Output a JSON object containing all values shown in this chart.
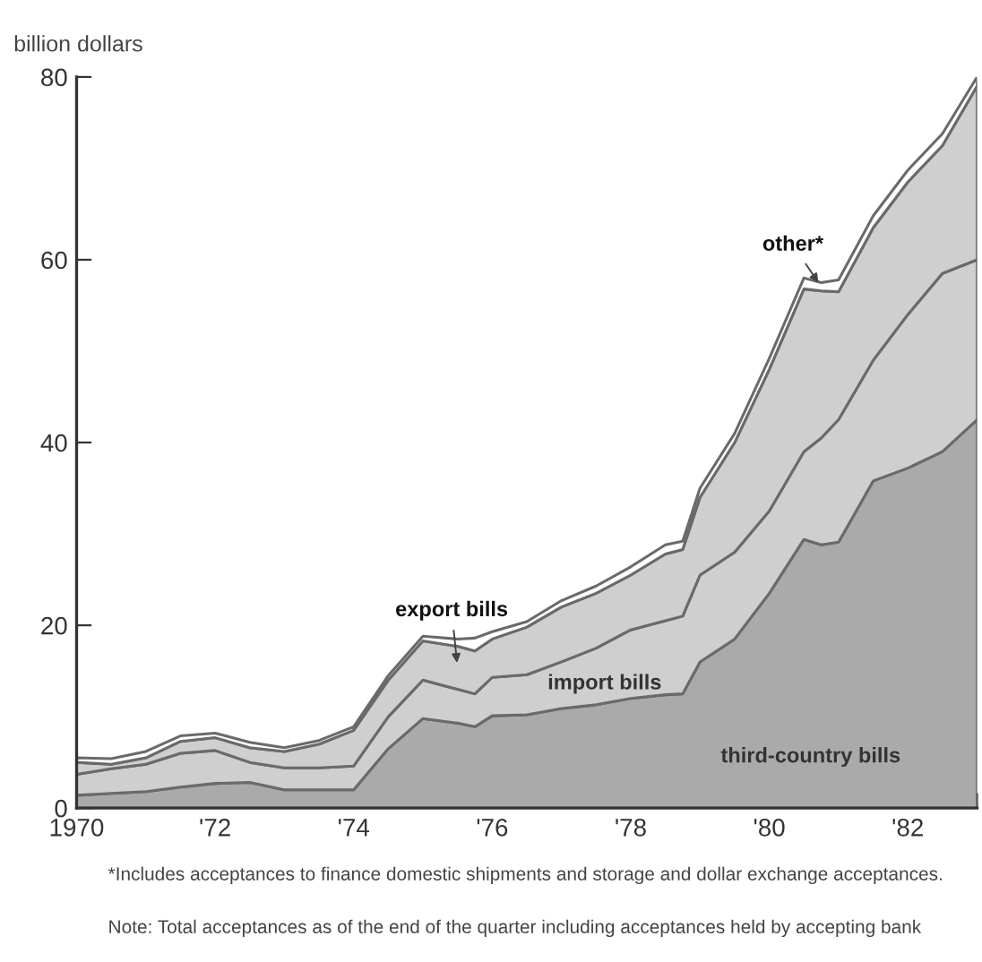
{
  "chart_data": {
    "type": "area",
    "stacked": true,
    "ylabel": "billion dollars",
    "x": [
      1970.0,
      1970.5,
      1971.0,
      1971.5,
      1972.0,
      1972.5,
      1973.0,
      1973.5,
      1974.0,
      1974.5,
      1975.0,
      1975.5,
      1975.75,
      1976.0,
      1976.5,
      1977.0,
      1977.5,
      1978.0,
      1978.5,
      1978.75,
      1979.0,
      1979.5,
      1980.0,
      1980.5,
      1980.75,
      1981.0,
      1981.5,
      1982.0,
      1982.5,
      1983.0
    ],
    "series": [
      {
        "name": "third-country bills",
        "color": "#aaaaaa",
        "values": [
          1.4,
          1.6,
          1.8,
          2.3,
          2.7,
          2.8,
          2.0,
          2.0,
          2.0,
          6.5,
          9.8,
          9.3,
          8.9,
          10.1,
          10.2,
          10.9,
          11.3,
          12.0,
          12.4,
          12.5,
          16.0,
          18.5,
          23.5,
          29.4,
          28.8,
          29.1,
          35.8,
          37.2,
          39.0,
          42.5
        ]
      },
      {
        "name": "import bills",
        "color": "#cfcfcf",
        "values": [
          2.3,
          2.7,
          3.0,
          3.7,
          3.6,
          2.2,
          2.4,
          2.4,
          2.6,
          3.5,
          4.2,
          3.7,
          3.6,
          4.2,
          4.4,
          5.1,
          6.2,
          7.5,
          8.1,
          8.5,
          9.5,
          9.5,
          9.0,
          9.6,
          11.7,
          13.4,
          13.2,
          16.8,
          19.5,
          17.5
        ]
      },
      {
        "name": "export bills",
        "color": "#cfcfcf",
        "values": [
          1.3,
          0.5,
          0.7,
          1.3,
          1.4,
          1.6,
          1.8,
          2.6,
          3.9,
          4.0,
          4.3,
          4.7,
          4.7,
          4.2,
          5.2,
          6.0,
          6.0,
          6.0,
          7.3,
          7.3,
          8.5,
          12.0,
          15.5,
          17.8,
          16.1,
          14.0,
          14.5,
          14.5,
          14.0,
          19.0
        ]
      },
      {
        "name": "other*",
        "color": "#ffffff",
        "values": [
          0.5,
          0.6,
          0.7,
          0.6,
          0.5,
          0.6,
          0.4,
          0.4,
          0.4,
          0.5,
          0.5,
          0.8,
          1.4,
          0.8,
          0.6,
          0.7,
          0.8,
          0.9,
          1.0,
          0.9,
          1.0,
          1.0,
          1.2,
          1.2,
          0.9,
          1.3,
          1.3,
          1.3,
          1.3,
          1.0
        ]
      }
    ],
    "xlim": [
      1970,
      1983
    ],
    "xticks": [
      1970,
      {
        "value": 1971,
        "label": null
      },
      {
        "value": 1972,
        "label": "'72"
      },
      {
        "value": 1973,
        "label": null
      },
      {
        "value": 1974,
        "label": "'74"
      },
      {
        "value": 1975,
        "label": null
      },
      {
        "value": 1976,
        "label": "'76"
      },
      {
        "value": 1977,
        "label": null
      },
      {
        "value": 1978,
        "label": "'78"
      },
      {
        "value": 1979,
        "label": null
      },
      {
        "value": 1980,
        "label": "'80"
      },
      {
        "value": 1981,
        "label": null
      },
      {
        "value": 1982,
        "label": "'82"
      },
      {
        "value": 1983,
        "label": null
      }
    ],
    "ylim": [
      0,
      80
    ],
    "yticks": [
      0,
      20,
      40,
      60,
      80
    ],
    "grid": false,
    "legend": false,
    "annotations": [
      "*Includes acceptances to finance domestic shipments and storage and dollar exchange acceptances.",
      "Note: Total acceptances as of the end of the quarter including acceptances held by accepting bank"
    ]
  }
}
